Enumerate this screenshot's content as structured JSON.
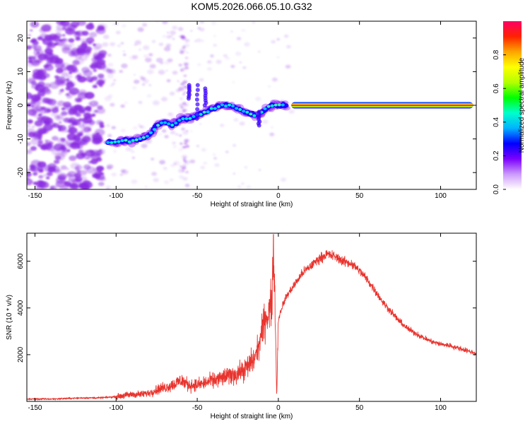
{
  "title": "KOM5.2026.066.05.10.G32",
  "colors": {
    "line": "#e8342e",
    "spectral_dots": "#8a2be2"
  },
  "chart_data": [
    {
      "type": "heatmap",
      "xlabel": "Height of straight line (km)",
      "ylabel": "Frequency (Hz)",
      "xlim": [
        -155,
        122
      ],
      "ylim": [
        -25,
        25
      ],
      "x_ticks": [
        -150,
        -100,
        -50,
        0,
        50,
        100
      ],
      "y_ticks": [
        20,
        10,
        0,
        -10,
        -20
      ],
      "colorbar": {
        "label": "Normalized spectral amplitude",
        "range": [
          0,
          1
        ],
        "ticks": [
          "0.0",
          "0.2",
          "0.4",
          "0.6",
          "0.8"
        ],
        "stops": [
          "#ffffff",
          "#cc99ff",
          "#7a00ff",
          "#0000ff",
          "#00b3ff",
          "#00ffcc",
          "#00ff00",
          "#b3ff00",
          "#ffff00",
          "#ffa500",
          "#ff2200",
          "#ff0066"
        ]
      },
      "ridge": {
        "x": [
          -105,
          -100,
          -95,
          -90,
          -85,
          -80,
          -75,
          -70,
          -65,
          -60,
          -55,
          -50,
          -45,
          -40,
          -35,
          -30,
          -25,
          -20,
          -15,
          -10,
          -5,
          0,
          5
        ],
        "y": [
          -11,
          -11,
          -10.5,
          -10.5,
          -10,
          -9,
          -6,
          -5,
          -6,
          -4,
          -4,
          -3,
          -2,
          -1,
          0,
          0,
          -1,
          -2,
          -3,
          -2,
          0,
          0,
          0
        ]
      },
      "steady_band": {
        "x_start": 8,
        "x_end": 120,
        "frequency": 0
      }
    },
    {
      "type": "line",
      "xlabel": "Height of straight line (km)",
      "ylabel": "SNR (10 * v/v)",
      "xlim": [
        -155,
        122
      ],
      "ylim": [
        0,
        7200
      ],
      "x_ticks": [
        -150,
        -100,
        -50,
        0,
        50,
        100
      ],
      "y_ticks": [
        2000,
        4000,
        6000
      ],
      "series": [
        {
          "name": "SNR",
          "x": [
            -155,
            -140,
            -120,
            -110,
            -100,
            -95,
            -90,
            -85,
            -80,
            -75,
            -70,
            -65,
            -60,
            -55,
            -50,
            -45,
            -40,
            -35,
            -30,
            -25,
            -20,
            -15,
            -12,
            -10,
            -8,
            -6,
            -4,
            -3,
            -2,
            -1,
            0,
            2,
            5,
            10,
            15,
            20,
            25,
            30,
            35,
            40,
            45,
            50,
            55,
            60,
            65,
            70,
            75,
            80,
            85,
            90,
            95,
            100,
            105,
            110,
            115,
            122
          ],
          "y": [
            100,
            100,
            150,
            150,
            200,
            250,
            300,
            300,
            350,
            500,
            600,
            700,
            900,
            700,
            700,
            800,
            900,
            1000,
            1100,
            1200,
            1400,
            1800,
            2400,
            3000,
            3600,
            3800,
            4200,
            7200,
            4000,
            200,
            3500,
            4000,
            4500,
            5000,
            5500,
            5800,
            6100,
            6300,
            6200,
            6000,
            5900,
            5600,
            5200,
            4700,
            4200,
            3800,
            3400,
            3100,
            2900,
            2700,
            2550,
            2450,
            2400,
            2300,
            2200,
            2050
          ]
        }
      ]
    }
  ]
}
